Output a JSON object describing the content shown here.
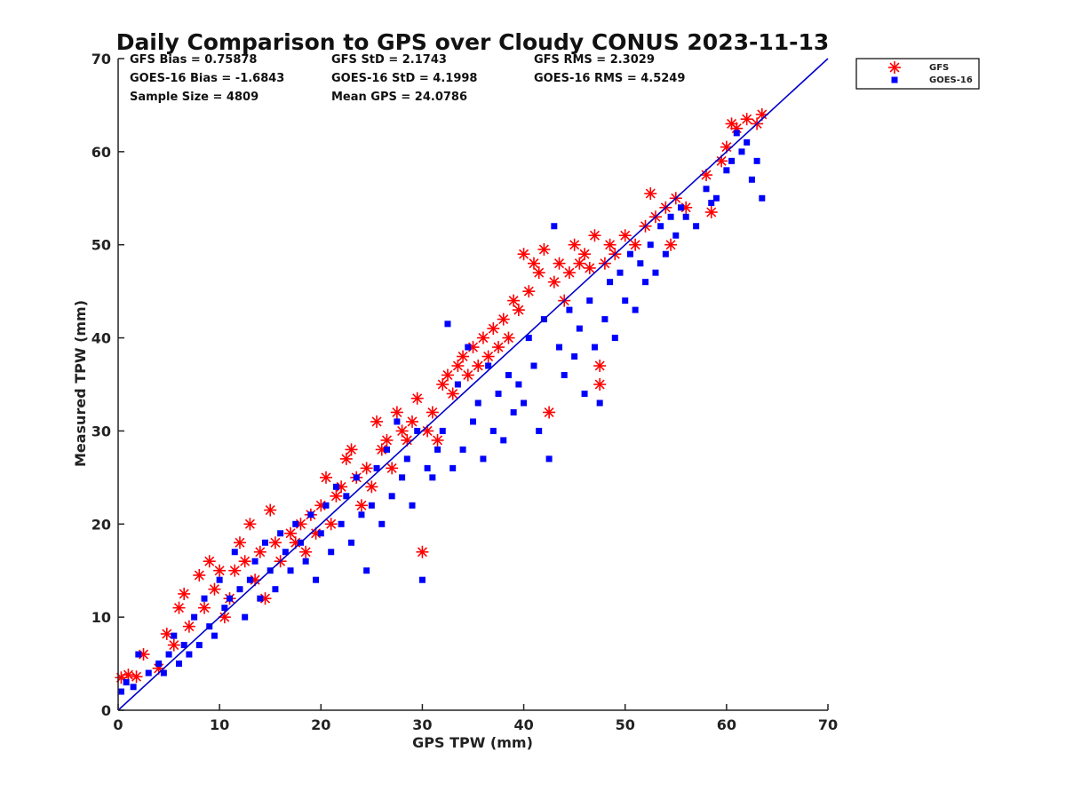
{
  "chart_data": {
    "type": "scatter",
    "title": "Daily Comparison to GPS over Cloudy CONUS 2023-11-13",
    "xlabel": "GPS TPW (mm)",
    "ylabel": "Measured TPW (mm)",
    "xlim": [
      0,
      70
    ],
    "ylim": [
      0,
      70
    ],
    "xticks": [
      "0",
      "10",
      "20",
      "30",
      "40",
      "50",
      "60",
      "70"
    ],
    "yticks": [
      "0",
      "10",
      "20",
      "30",
      "40",
      "50",
      "60",
      "70"
    ],
    "grid": false,
    "legend_position": "outside-top-right",
    "stats": [
      [
        "GFS Bias = 0.75878",
        "GFS StD = 2.1743",
        "GFS RMS = 2.3029"
      ],
      [
        "GOES-16 Bias = -1.6843",
        "GOES-16 StD = 4.1998",
        "GOES-16 RMS = 4.5249"
      ],
      [
        "Sample Size = 4809",
        "Mean GPS = 24.0786"
      ]
    ],
    "one_to_one_line": {
      "x": [
        0,
        70
      ],
      "y": [
        0,
        70
      ],
      "color": "#0000cc"
    },
    "series": [
      {
        "name": "GFS",
        "marker": "asterisk",
        "color": "#ff0000",
        "points": [
          [
            0.3,
            3.5
          ],
          [
            1,
            3.8
          ],
          [
            1.8,
            3.6
          ],
          [
            2.5,
            6
          ],
          [
            4,
            4.5
          ],
          [
            4.8,
            8.2
          ],
          [
            5.5,
            7
          ],
          [
            6,
            11
          ],
          [
            6.5,
            12.5
          ],
          [
            7,
            9
          ],
          [
            8,
            14.5
          ],
          [
            8.5,
            11
          ],
          [
            9,
            16
          ],
          [
            9.5,
            13
          ],
          [
            10,
            15
          ],
          [
            10.5,
            10
          ],
          [
            11,
            12
          ],
          [
            11.5,
            15
          ],
          [
            12,
            18
          ],
          [
            12.5,
            16
          ],
          [
            13,
            20
          ],
          [
            13.5,
            14
          ],
          [
            14,
            17
          ],
          [
            14.5,
            12
          ],
          [
            15,
            21.5
          ],
          [
            15.5,
            18
          ],
          [
            16,
            16
          ],
          [
            17,
            19
          ],
          [
            17.5,
            18
          ],
          [
            18,
            20
          ],
          [
            18.5,
            17
          ],
          [
            19,
            21
          ],
          [
            19.5,
            19
          ],
          [
            20,
            22
          ],
          [
            20.5,
            25
          ],
          [
            21,
            20
          ],
          [
            21.5,
            23
          ],
          [
            22,
            24
          ],
          [
            22.5,
            27
          ],
          [
            23,
            28
          ],
          [
            23.5,
            25
          ],
          [
            24,
            22
          ],
          [
            24.5,
            26
          ],
          [
            25,
            24
          ],
          [
            25.5,
            31
          ],
          [
            26,
            28
          ],
          [
            26.5,
            29
          ],
          [
            27,
            26
          ],
          [
            27.5,
            32
          ],
          [
            28,
            30
          ],
          [
            28.5,
            29
          ],
          [
            29,
            31
          ],
          [
            29.5,
            33.5
          ],
          [
            30,
            17
          ],
          [
            30.5,
            30
          ],
          [
            31,
            32
          ],
          [
            31.5,
            29
          ],
          [
            32,
            35
          ],
          [
            32.5,
            36
          ],
          [
            33,
            34
          ],
          [
            33.5,
            37
          ],
          [
            34,
            38
          ],
          [
            34.5,
            36
          ],
          [
            35,
            39
          ],
          [
            35.5,
            37
          ],
          [
            36,
            40
          ],
          [
            36.5,
            38
          ],
          [
            37,
            41
          ],
          [
            37.5,
            39
          ],
          [
            38,
            42
          ],
          [
            38.5,
            40
          ],
          [
            39,
            44
          ],
          [
            39.5,
            43
          ],
          [
            40,
            49
          ],
          [
            40.5,
            45
          ],
          [
            41,
            48
          ],
          [
            41.5,
            47
          ],
          [
            42,
            49.5
          ],
          [
            42.5,
            32
          ],
          [
            43,
            46
          ],
          [
            43.5,
            48
          ],
          [
            44,
            44
          ],
          [
            44.5,
            47
          ],
          [
            45,
            50
          ],
          [
            45.5,
            48
          ],
          [
            46,
            49
          ],
          [
            46.5,
            47.5
          ],
          [
            47,
            51
          ],
          [
            47.5,
            37
          ],
          [
            47.5,
            35
          ],
          [
            48,
            48
          ],
          [
            48.5,
            50
          ],
          [
            49,
            49
          ],
          [
            50,
            51
          ],
          [
            51,
            50
          ],
          [
            52,
            52
          ],
          [
            52.5,
            55.5
          ],
          [
            53,
            53
          ],
          [
            54,
            54
          ],
          [
            54.5,
            50
          ],
          [
            55,
            55
          ],
          [
            56,
            54
          ],
          [
            58,
            57.5
          ],
          [
            58.5,
            53.5
          ],
          [
            59.5,
            59
          ],
          [
            60,
            60.5
          ],
          [
            60.5,
            63
          ],
          [
            61,
            62.5
          ],
          [
            62,
            63.5
          ],
          [
            63,
            63
          ],
          [
            63.5,
            64
          ]
        ]
      },
      {
        "name": "GOES-16",
        "marker": "square",
        "color": "#0000ff",
        "points": [
          [
            0.3,
            2
          ],
          [
            0.8,
            3
          ],
          [
            1.5,
            2.5
          ],
          [
            2,
            6
          ],
          [
            3,
            4
          ],
          [
            4,
            5
          ],
          [
            4.5,
            4
          ],
          [
            5,
            6
          ],
          [
            5.5,
            8
          ],
          [
            6,
            5
          ],
          [
            6.5,
            7
          ],
          [
            7,
            6
          ],
          [
            7.5,
            10
          ],
          [
            8,
            7
          ],
          [
            8.5,
            12
          ],
          [
            9,
            9
          ],
          [
            9.5,
            8
          ],
          [
            10,
            14
          ],
          [
            10.5,
            11
          ],
          [
            11,
            12
          ],
          [
            11.5,
            17
          ],
          [
            12,
            13
          ],
          [
            12.5,
            10
          ],
          [
            13,
            14
          ],
          [
            13.5,
            16
          ],
          [
            14,
            12
          ],
          [
            14.5,
            18
          ],
          [
            15,
            15
          ],
          [
            15.5,
            13
          ],
          [
            16,
            19
          ],
          [
            16.5,
            17
          ],
          [
            17,
            15
          ],
          [
            17.5,
            20
          ],
          [
            18,
            18
          ],
          [
            18.5,
            16
          ],
          [
            19,
            21
          ],
          [
            19.5,
            14
          ],
          [
            20,
            19
          ],
          [
            20.5,
            22
          ],
          [
            21,
            17
          ],
          [
            21.5,
            24
          ],
          [
            22,
            20
          ],
          [
            22.5,
            23
          ],
          [
            23,
            18
          ],
          [
            23.5,
            25
          ],
          [
            24,
            21
          ],
          [
            24.5,
            15
          ],
          [
            25,
            22
          ],
          [
            25.5,
            26
          ],
          [
            26,
            20
          ],
          [
            26.5,
            28
          ],
          [
            27,
            23
          ],
          [
            27.5,
            31
          ],
          [
            28,
            25
          ],
          [
            28.5,
            27
          ],
          [
            29,
            22
          ],
          [
            29.5,
            30
          ],
          [
            30,
            14
          ],
          [
            30.5,
            26
          ],
          [
            31,
            25
          ],
          [
            31.5,
            28
          ],
          [
            32,
            30
          ],
          [
            32.5,
            41.5
          ],
          [
            33,
            26
          ],
          [
            33.5,
            35
          ],
          [
            34,
            28
          ],
          [
            34.5,
            39
          ],
          [
            35,
            31
          ],
          [
            35.5,
            33
          ],
          [
            36,
            27
          ],
          [
            36.5,
            37
          ],
          [
            37,
            30
          ],
          [
            37.5,
            34
          ],
          [
            38,
            29
          ],
          [
            38.5,
            36
          ],
          [
            39,
            32
          ],
          [
            39.5,
            35
          ],
          [
            40,
            33
          ],
          [
            40.5,
            40
          ],
          [
            41,
            37
          ],
          [
            41.5,
            30
          ],
          [
            42,
            42
          ],
          [
            42.5,
            27
          ],
          [
            43,
            52
          ],
          [
            43.5,
            39
          ],
          [
            44,
            36
          ],
          [
            44.5,
            43
          ],
          [
            45,
            38
          ],
          [
            45.5,
            41
          ],
          [
            46,
            34
          ],
          [
            46.5,
            44
          ],
          [
            47,
            39
          ],
          [
            47.5,
            33
          ],
          [
            48,
            42
          ],
          [
            48.5,
            46
          ],
          [
            49,
            40
          ],
          [
            49.5,
            47
          ],
          [
            50,
            44
          ],
          [
            50.5,
            49
          ],
          [
            51,
            43
          ],
          [
            51.5,
            48
          ],
          [
            52,
            46
          ],
          [
            52.5,
            50
          ],
          [
            53,
            47
          ],
          [
            53.5,
            52
          ],
          [
            54,
            49
          ],
          [
            54.5,
            53
          ],
          [
            55,
            51
          ],
          [
            55.5,
            54
          ],
          [
            56,
            53
          ],
          [
            57,
            52
          ],
          [
            58,
            56
          ],
          [
            58.5,
            54.5
          ],
          [
            59,
            55
          ],
          [
            60,
            58
          ],
          [
            60.5,
            59
          ],
          [
            61,
            62
          ],
          [
            61.5,
            60
          ],
          [
            62,
            61
          ],
          [
            62.5,
            57
          ],
          [
            63,
            59
          ],
          [
            63.5,
            55
          ]
        ]
      }
    ]
  }
}
